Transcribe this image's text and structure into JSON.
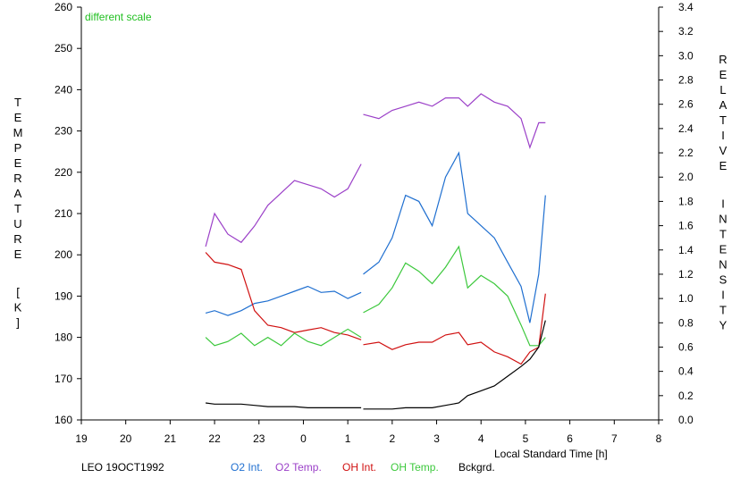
{
  "chart_data": {
    "type": "line",
    "left_axis_label": "TEMPERATURE [K]",
    "right_axis_label": "RELATIVE INTENSITY",
    "xlabel": "Local Standard Time [h]",
    "annotation": "different scale",
    "footer_label": "LEO 19OCT1992",
    "ylim_left": [
      160,
      260
    ],
    "ylim_right": [
      0.0,
      3.4
    ],
    "xlim": [
      19,
      32
    ],
    "x_tick_values": [
      19,
      20,
      21,
      22,
      23,
      24,
      25,
      26,
      27,
      28,
      29,
      30,
      31,
      32
    ],
    "x_tick_labels": [
      "19",
      "20",
      "21",
      "22",
      "23",
      "0",
      "1",
      "2",
      "3",
      "4",
      "5",
      "6",
      "7",
      "8"
    ],
    "y_left_ticks": [
      "160",
      "170",
      "180",
      "190",
      "200",
      "210",
      "220",
      "230",
      "240",
      "250",
      "260"
    ],
    "y_right_ticks": [
      "0.0",
      "0.2",
      "0.4",
      "0.6",
      "0.8",
      "1.0",
      "1.2",
      "1.4",
      "1.6",
      "1.8",
      "2.0",
      "2.2",
      "2.4",
      "2.6",
      "2.8",
      "3.0",
      "3.2",
      "3.4"
    ],
    "grid": false,
    "legend_position": "bottom",
    "colors": {
      "o2_int": "#1f6fd0",
      "o2_temp": "#9b40c8",
      "oh_int": "#d01010",
      "oh_temp": "#3cc83c",
      "bckgrd": "#000000",
      "annotation": "#22c022"
    },
    "series": [
      {
        "name": "O2 Int.",
        "key": "o2_int",
        "axis": "right",
        "x": [
          21.8,
          22.0,
          22.3,
          22.6,
          22.9,
          23.2,
          23.5,
          23.8,
          24.1,
          24.4,
          24.7,
          25.0,
          25.3,
          25.35,
          25.7,
          26.0,
          26.3,
          26.6,
          26.9,
          27.2,
          27.5,
          27.7,
          28.0,
          28.3,
          28.6,
          28.9,
          29.1,
          29.3,
          29.45
        ],
        "y": [
          0.88,
          0.9,
          0.86,
          0.9,
          0.96,
          0.98,
          1.02,
          1.06,
          1.1,
          1.05,
          1.06,
          1.0,
          1.05,
          1.2,
          1.3,
          1.5,
          1.85,
          1.8,
          1.6,
          2.0,
          2.2,
          1.7,
          1.6,
          1.5,
          1.3,
          1.1,
          0.8,
          1.2,
          1.85
        ]
      },
      {
        "name": "O2 Temp.",
        "key": "o2_temp",
        "axis": "left",
        "x": [
          21.8,
          22.0,
          22.3,
          22.6,
          22.9,
          23.2,
          23.5,
          23.8,
          24.1,
          24.4,
          24.7,
          25.0,
          25.3,
          25.35,
          25.7,
          26.0,
          26.3,
          26.6,
          26.9,
          27.2,
          27.5,
          27.7,
          28.0,
          28.3,
          28.6,
          28.9,
          29.1,
          29.3,
          29.45
        ],
        "y": [
          202,
          210,
          205,
          203,
          207,
          212,
          215,
          218,
          217,
          216,
          214,
          216,
          222,
          234,
          233,
          235,
          236,
          237,
          236,
          238,
          238,
          236,
          239,
          237,
          236,
          233,
          226,
          232,
          232
        ]
      },
      {
        "name": "OH Int.",
        "key": "oh_int",
        "axis": "right",
        "x": [
          21.8,
          22.0,
          22.3,
          22.6,
          22.9,
          23.2,
          23.5,
          23.8,
          24.1,
          24.4,
          24.7,
          25.0,
          25.3,
          25.35,
          25.7,
          26.0,
          26.3,
          26.6,
          26.9,
          27.2,
          27.5,
          27.7,
          28.0,
          28.3,
          28.6,
          28.9,
          29.1,
          29.3,
          29.45
        ],
        "y": [
          1.38,
          1.3,
          1.28,
          1.24,
          0.9,
          0.78,
          0.76,
          0.72,
          0.74,
          0.76,
          0.72,
          0.7,
          0.66,
          0.62,
          0.64,
          0.58,
          0.62,
          0.64,
          0.64,
          0.7,
          0.72,
          0.62,
          0.64,
          0.56,
          0.52,
          0.46,
          0.56,
          0.6,
          1.04
        ]
      },
      {
        "name": "OH Temp.",
        "key": "oh_temp",
        "axis": "left",
        "x": [
          21.8,
          22.0,
          22.3,
          22.6,
          22.9,
          23.2,
          23.5,
          23.8,
          24.1,
          24.4,
          24.7,
          25.0,
          25.3,
          25.35,
          25.7,
          26.0,
          26.3,
          26.6,
          26.9,
          27.2,
          27.5,
          27.7,
          28.0,
          28.3,
          28.6,
          28.9,
          29.1,
          29.3,
          29.45
        ],
        "y": [
          180,
          178,
          179,
          181,
          178,
          180,
          178,
          181,
          179,
          178,
          180,
          182,
          180,
          186,
          188,
          192,
          198,
          196,
          193,
          197,
          202,
          192,
          195,
          193,
          190,
          183,
          178,
          178,
          180
        ]
      },
      {
        "name": "Bckgrd.",
        "key": "bckgrd",
        "axis": "right",
        "x": [
          21.8,
          22.0,
          22.3,
          22.6,
          22.9,
          23.2,
          23.5,
          23.8,
          24.1,
          24.4,
          24.7,
          25.0,
          25.3,
          25.35,
          25.7,
          26.0,
          26.3,
          26.6,
          26.9,
          27.2,
          27.5,
          27.7,
          28.0,
          28.3,
          28.6,
          28.9,
          29.1,
          29.3,
          29.45
        ],
        "y": [
          0.14,
          0.13,
          0.13,
          0.13,
          0.12,
          0.11,
          0.11,
          0.11,
          0.1,
          0.1,
          0.1,
          0.1,
          0.1,
          0.09,
          0.09,
          0.09,
          0.1,
          0.1,
          0.1,
          0.12,
          0.14,
          0.2,
          0.24,
          0.28,
          0.36,
          0.44,
          0.5,
          0.6,
          0.82
        ]
      }
    ]
  }
}
